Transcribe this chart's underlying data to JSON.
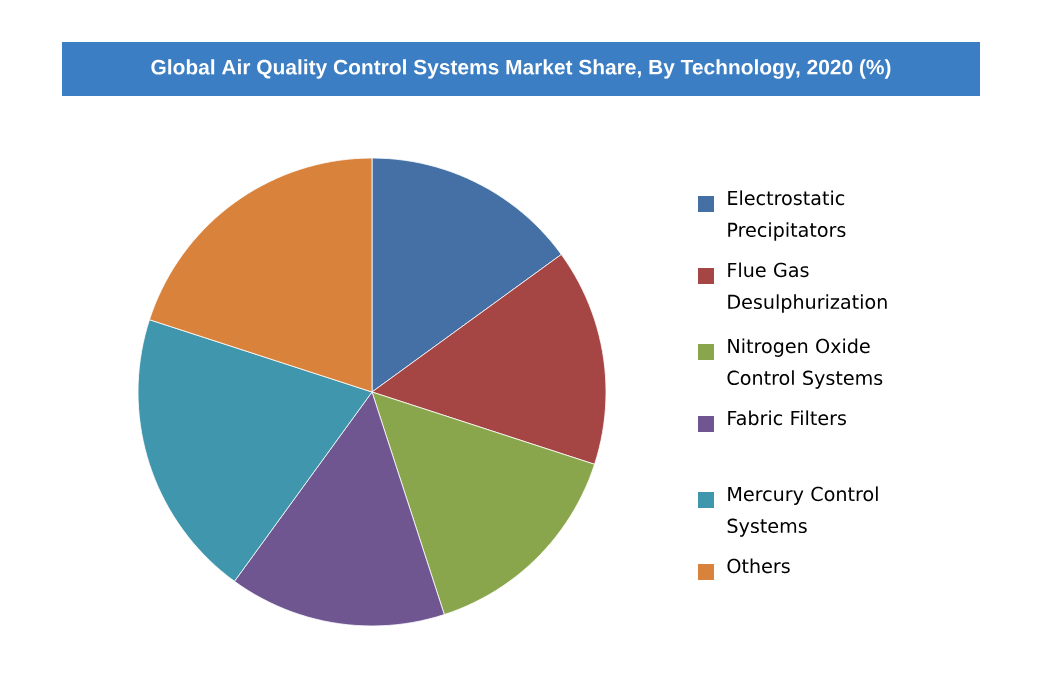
{
  "chart_data": {
    "type": "pie",
    "title": "Global Air Quality Control Systems Market Share, By Technology, 2020 (%)",
    "categories": [
      "Electrostatic Precipitators",
      "Flue Gas Desulphurization",
      "Nitrogen Oxide Control Systems",
      "Fabric Filters",
      "Mercury Control Systems",
      "Others"
    ],
    "values": [
      15,
      15,
      15,
      15,
      20,
      20
    ],
    "colors": [
      "#4470a5",
      "#a64644",
      "#8aa64c",
      "#6f5690",
      "#4097ad",
      "#d9823b"
    ],
    "legend": "right"
  }
}
